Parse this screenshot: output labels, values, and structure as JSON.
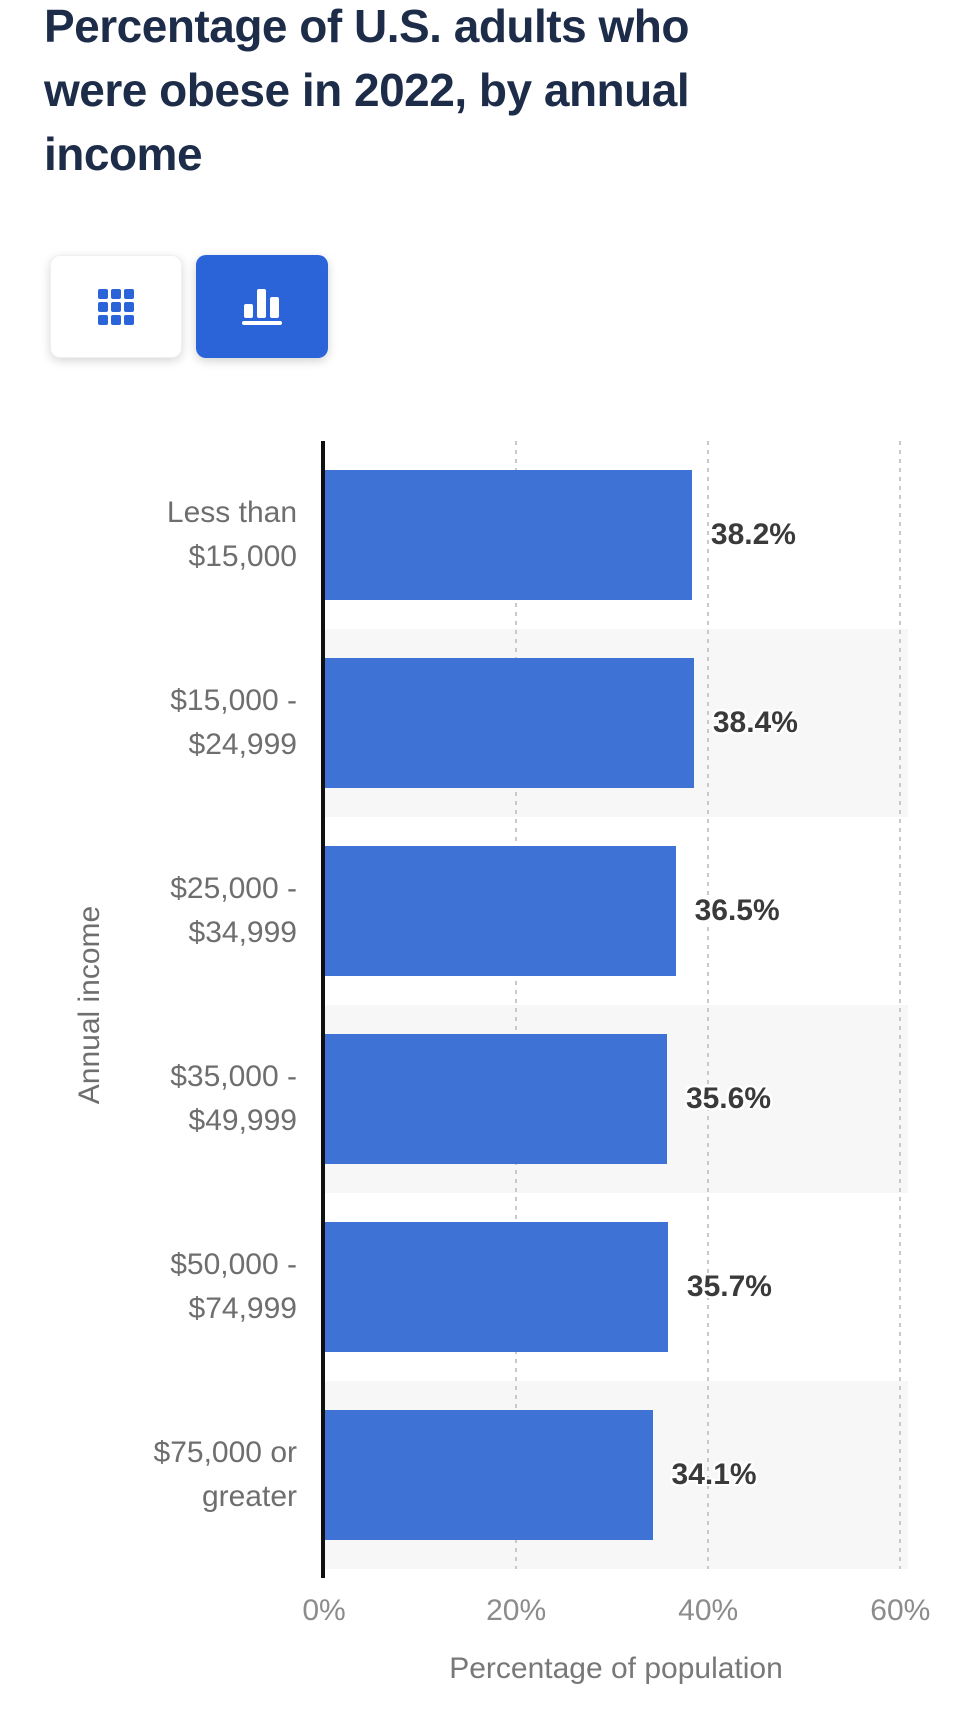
{
  "title": "Percentage of U.S. adults who\nwere obese in 2022, by annual\nincome",
  "toolbar": {
    "table_button": {
      "icon": "table-grid-icon",
      "active": false
    },
    "chart_button": {
      "icon": "bar-chart-icon",
      "active": true
    }
  },
  "colors": {
    "accent_blue": "#2b63d9",
    "bar_blue": "#3e72d5",
    "band_gray": "#f7f7f7",
    "title_navy": "#1d2d49"
  },
  "chart_data": {
    "type": "bar",
    "orientation": "horizontal",
    "title": "Percentage of U.S. adults who were obese in 2022, by annual income",
    "categories": [
      "Less than\n$15,000",
      "$15,000 -\n$24,999",
      "$25,000 -\n$34,999",
      "$35,000 -\n$49,999",
      "$50,000 -\n$74,999",
      "$75,000 or\ngreater"
    ],
    "values": [
      38.2,
      38.4,
      36.5,
      35.6,
      35.7,
      34.1
    ],
    "value_labels": [
      "38.2%",
      "38.4%",
      "36.5%",
      "35.6%",
      "35.7%",
      "34.1%"
    ],
    "xlabel": "Percentage of population",
    "ylabel": "Annual income",
    "xlim": [
      0,
      60.8
    ],
    "xtick_values": [
      0,
      20,
      40,
      60
    ],
    "xtick_labels": [
      "0%",
      "20%",
      "40%",
      "60%"
    ],
    "grid": true,
    "legend": false,
    "bar_color": "#3e72d5",
    "alternating_band_color": "#f7f7f7"
  }
}
